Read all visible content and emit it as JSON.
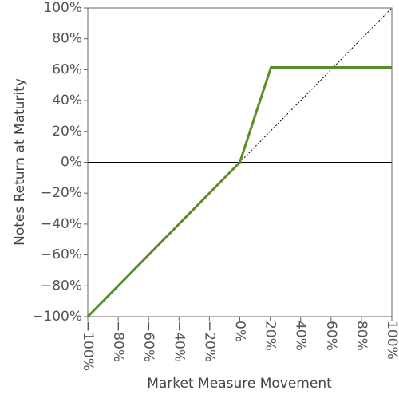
{
  "chart_data": {
    "type": "line",
    "xlabel": "Market Measure Movement",
    "ylabel": "Notes Return at Maturity",
    "xlim": [
      -100,
      100
    ],
    "ylim": [
      -100,
      100
    ],
    "xticks": [
      {
        "value": -100,
        "label": "−100%"
      },
      {
        "value": -80,
        "label": "−80%"
      },
      {
        "value": -60,
        "label": "−60%"
      },
      {
        "value": -40,
        "label": "−40%"
      },
      {
        "value": -20,
        "label": "−20%"
      },
      {
        "value": 0,
        "label": "0%"
      },
      {
        "value": 20,
        "label": "20%"
      },
      {
        "value": 40,
        "label": "40%"
      },
      {
        "value": 60,
        "label": "60%"
      },
      {
        "value": 80,
        "label": "80%"
      },
      {
        "value": 100,
        "label": "100%"
      }
    ],
    "yticks": [
      {
        "value": -100,
        "label": "−100%"
      },
      {
        "value": -80,
        "label": "−80%"
      },
      {
        "value": -60,
        "label": "−60%"
      },
      {
        "value": -40,
        "label": "−40%"
      },
      {
        "value": -20,
        "label": "−20%"
      },
      {
        "value": 0,
        "label": "0%"
      },
      {
        "value": 20,
        "label": "20%"
      },
      {
        "value": 40,
        "label": "40%"
      },
      {
        "value": 60,
        "label": "60%"
      },
      {
        "value": 80,
        "label": "80%"
      },
      {
        "value": 100,
        "label": "100%"
      }
    ],
    "hlines": [
      0
    ],
    "series": [
      {
        "color": "#5b8c2a",
        "x": [
          -100,
          0,
          20.5,
          100
        ],
        "values": [
          -100,
          0,
          61.5,
          61.5
        ]
      },
      {
        "color": "#000000",
        "dash": "dotted",
        "x": [
          0,
          100
        ],
        "values": [
          0,
          100
        ]
      }
    ]
  }
}
